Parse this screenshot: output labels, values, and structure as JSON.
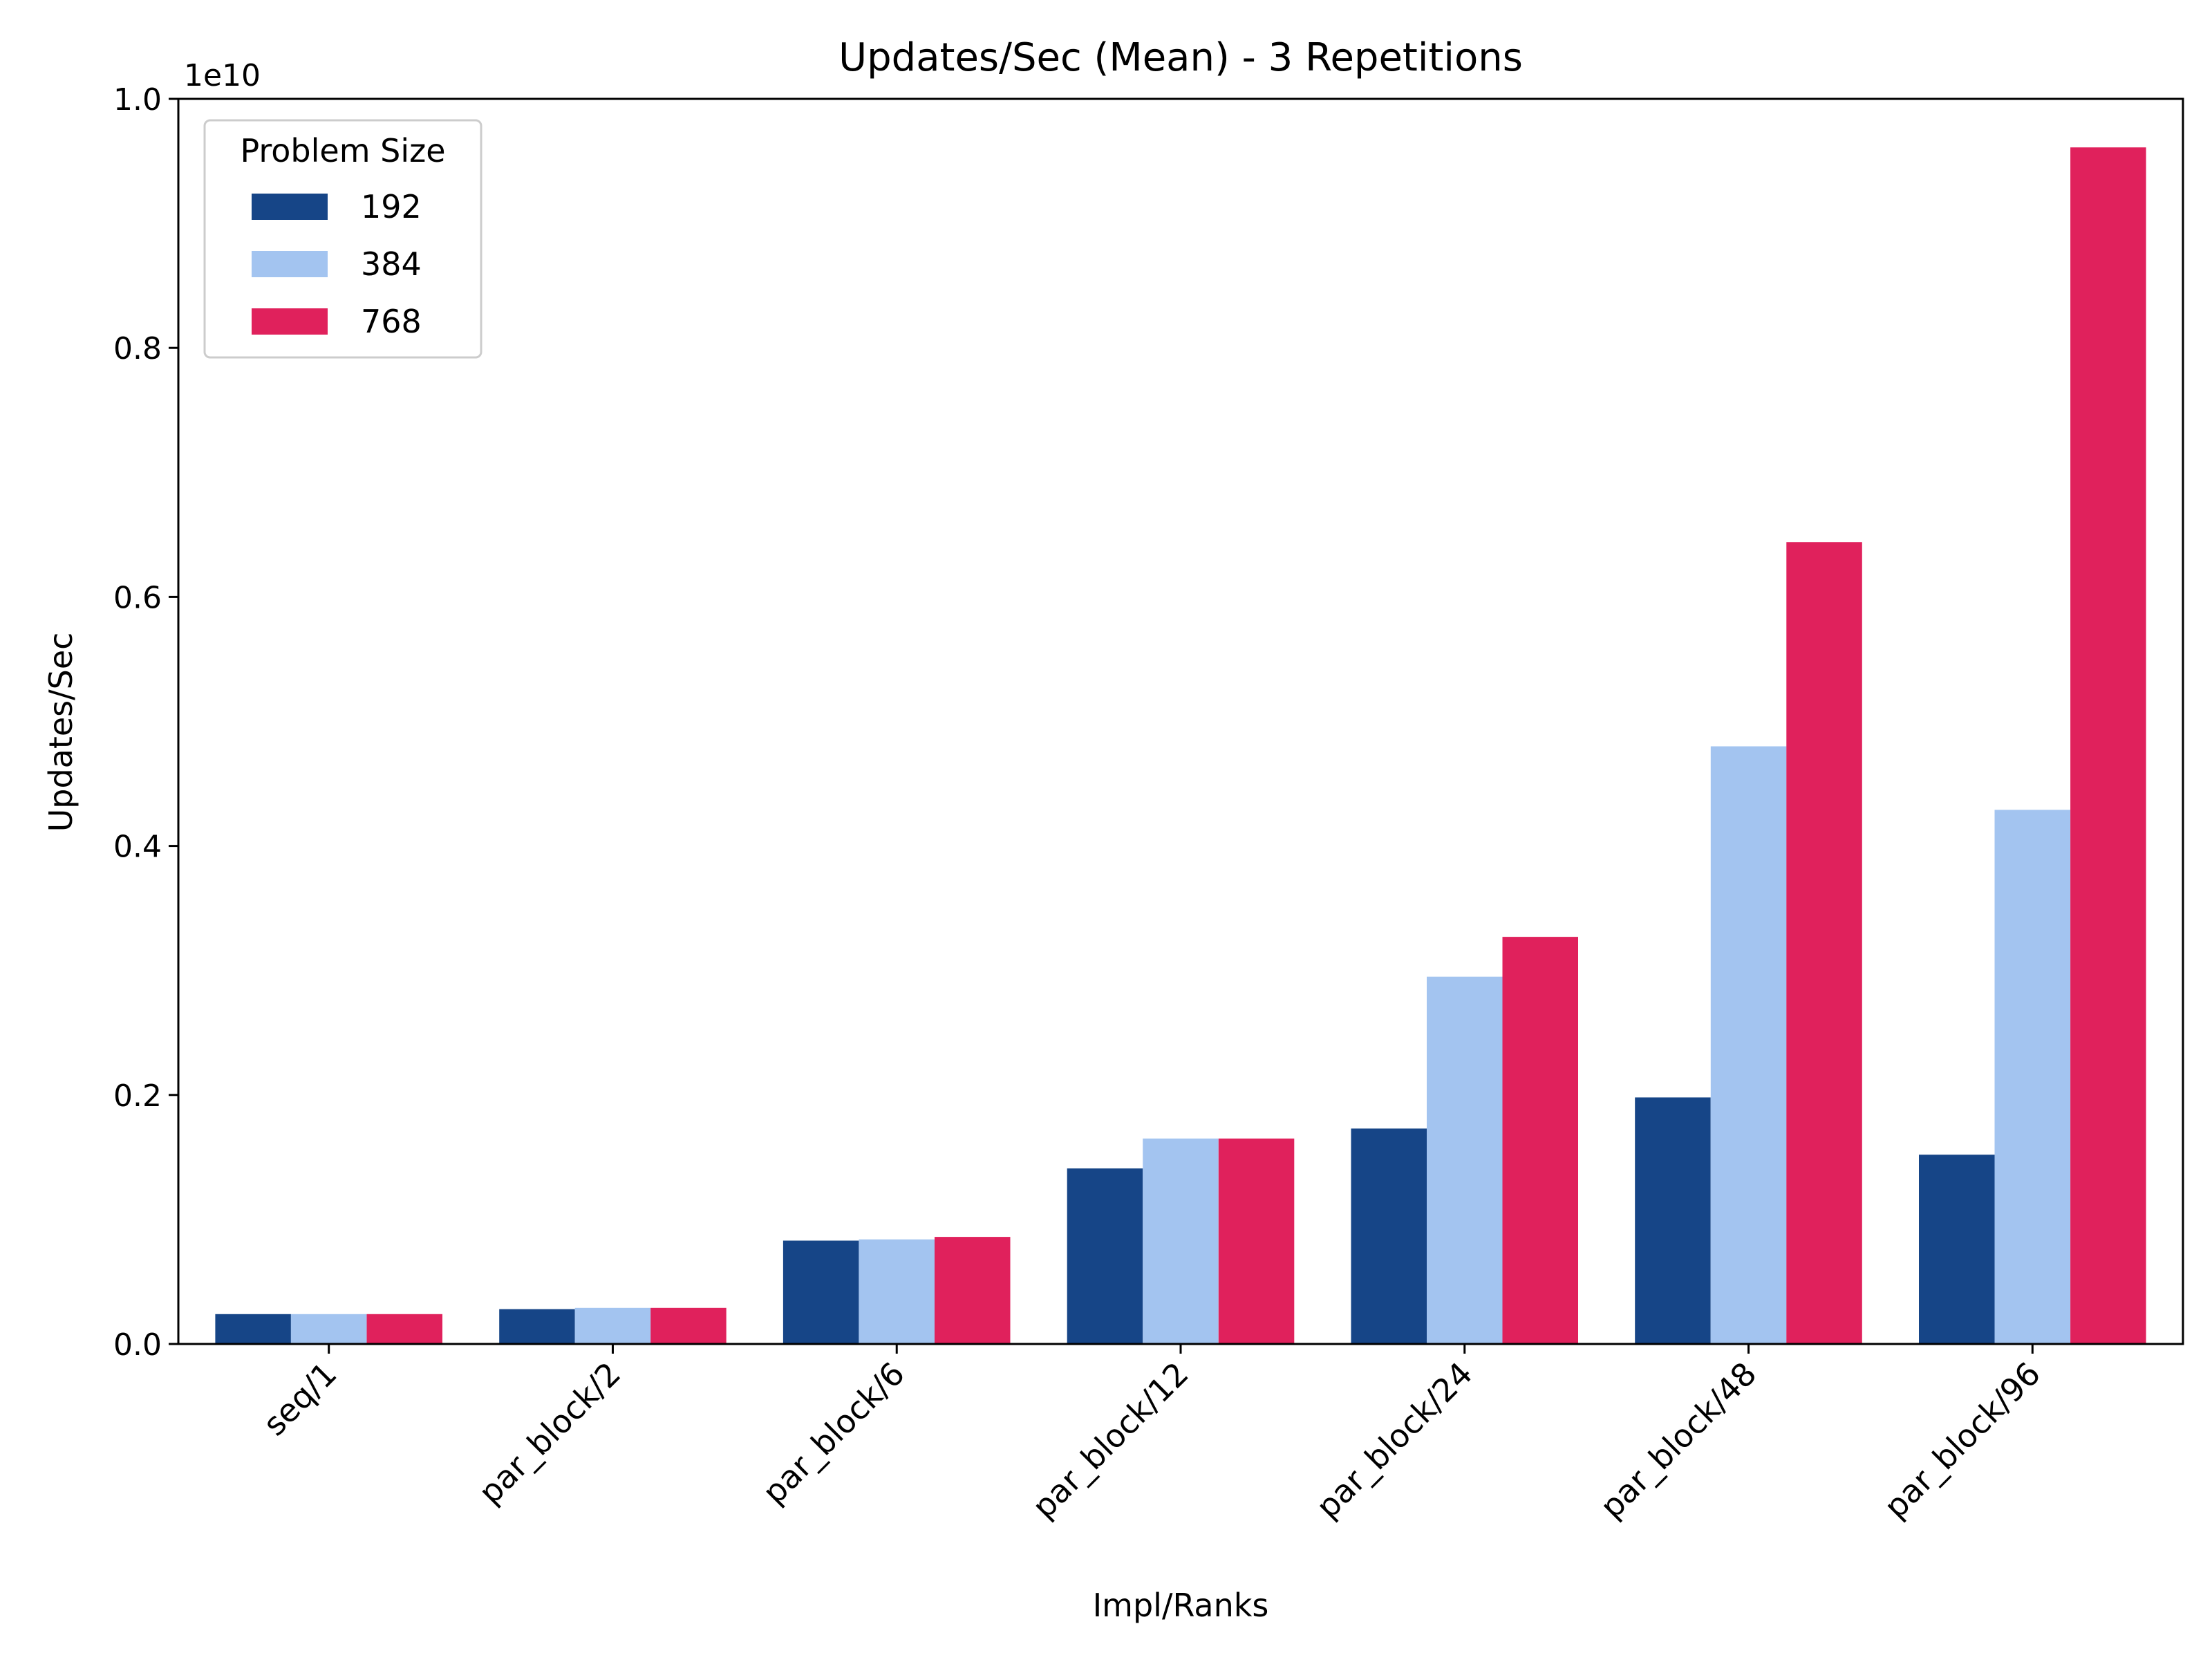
{
  "chart_data": {
    "type": "bar",
    "title": "Updates/Sec (Mean) - 3 Repetitions",
    "xlabel": "Impl/Ranks",
    "ylabel": "Updates/Sec",
    "y_scale_label": "1e10",
    "y_unit": 10000000000,
    "ylim": [
      0,
      1.0
    ],
    "yticks": [
      0.0,
      0.2,
      0.4,
      0.6,
      0.8,
      1.0
    ],
    "ytick_labels": [
      "0.0",
      "0.2",
      "0.4",
      "0.6",
      "0.8",
      "1.0"
    ],
    "grid": false,
    "categories": [
      "seq/1",
      "par_block/2",
      "par_block/6",
      "par_block/12",
      "par_block/24",
      "par_block/48",
      "par_block/96"
    ],
    "legend": {
      "title": "Problem Size",
      "placement": "upper left"
    },
    "series": [
      {
        "name": "192",
        "color": "#164587",
        "values": [
          0.024,
          0.028,
          0.083,
          0.141,
          0.173,
          0.198,
          0.152
        ]
      },
      {
        "name": "384",
        "color": "#a3c4f0",
        "values": [
          0.024,
          0.029,
          0.084,
          0.165,
          0.295,
          0.48,
          0.429
        ]
      },
      {
        "name": "768",
        "color": "#e0215c",
        "values": [
          0.024,
          0.029,
          0.086,
          0.165,
          0.327,
          0.644,
          0.961
        ]
      }
    ]
  }
}
